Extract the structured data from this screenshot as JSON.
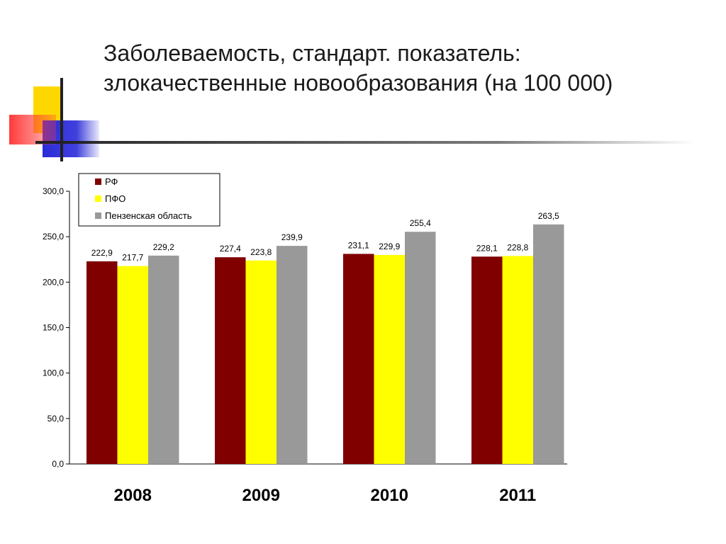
{
  "slide": {
    "title_line1": "Заболеваемость, стандарт. показатель:",
    "title_line2": "злокачественные новообразования (на 100 000)"
  },
  "colors": {
    "deco_yellow": "#ffd700",
    "deco_red": "#ff3b3b",
    "deco_blue": "#2b2bd9",
    "deco_line": "#222222"
  },
  "chart_data": {
    "type": "bar",
    "categories": [
      "2008",
      "2009",
      "2010",
      "2011"
    ],
    "series": [
      {
        "name": "РФ",
        "color": "#800000",
        "values": [
          222.9,
          227.4,
          231.1,
          228.1
        ],
        "labels": [
          "222,9",
          "227,4",
          "231,1",
          "228,1"
        ]
      },
      {
        "name": "ПФО",
        "color": "#ffff00",
        "values": [
          217.7,
          223.8,
          229.9,
          228.8
        ],
        "labels": [
          "217,7",
          "223,8",
          "229,9",
          "228,8"
        ]
      },
      {
        "name": "Пензенская область",
        "color": "#999999",
        "values": [
          229.2,
          239.9,
          255.4,
          263.5
        ],
        "labels": [
          "229,2",
          "239,9",
          "255,4",
          "263,5"
        ]
      }
    ],
    "ylim": [
      0,
      300
    ],
    "yticks": [
      0,
      50,
      100,
      150,
      200,
      250,
      300
    ],
    "ytick_labels": [
      "0,0",
      "50,0",
      "100,0",
      "150,0",
      "200,0",
      "250,0",
      "300,0"
    ],
    "grid": false,
    "legend_position": "top-left"
  }
}
